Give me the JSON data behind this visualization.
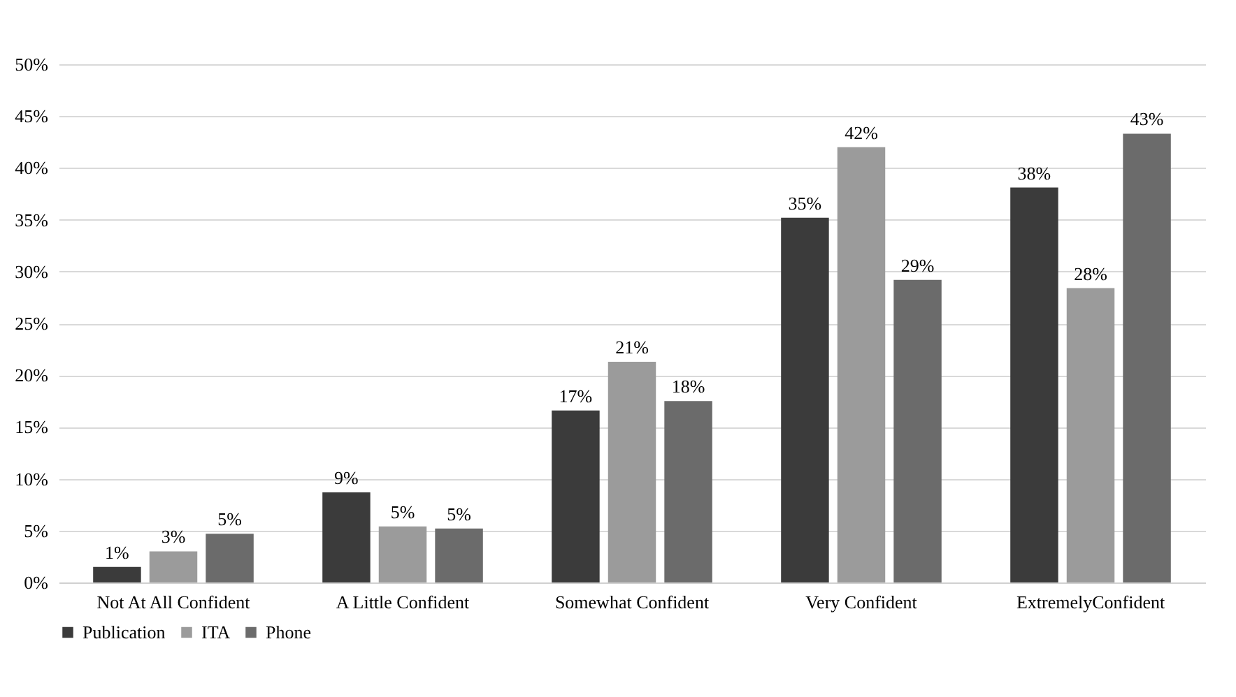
{
  "chart_data": {
    "type": "bar",
    "categories": [
      "Not At All Confident",
      "A Little Confident",
      "Somewhat Confident",
      "Very Confident",
      "ExtremelyConfident"
    ],
    "series": [
      {
        "name": "Publication",
        "color": "#3b3b3b",
        "values": [
          1.5,
          8.7,
          16.6,
          35.2,
          38.1
        ],
        "value_labels": [
          "1%",
          "9%",
          "17%",
          "35%",
          "38%"
        ]
      },
      {
        "name": "ITA",
        "color": "#9b9b9b",
        "values": [
          3.0,
          5.4,
          21.3,
          42.0,
          28.4
        ],
        "value_labels": [
          "3%",
          "5%",
          "21%",
          "42%",
          "28%"
        ]
      },
      {
        "name": "Phone",
        "color": "#6b6b6b",
        "values": [
          4.7,
          5.2,
          17.5,
          29.2,
          43.3
        ],
        "value_labels": [
          "5%",
          "5%",
          "18%",
          "29%",
          "43%"
        ]
      }
    ],
    "ylim": [
      0,
      50
    ],
    "yticks": [
      {
        "value": 0,
        "label": "0%"
      },
      {
        "value": 5,
        "label": "5%"
      },
      {
        "value": 10,
        "label": "10%"
      },
      {
        "value": 15,
        "label": "15%"
      },
      {
        "value": 20,
        "label": "20%"
      },
      {
        "value": 25,
        "label": "25%"
      },
      {
        "value": 30,
        "label": "30%"
      },
      {
        "value": 35,
        "label": "35%"
      },
      {
        "value": 40,
        "label": "40%"
      },
      {
        "value": 45,
        "label": "45%"
      },
      {
        "value": 50,
        "label": "50%"
      }
    ],
    "grid": "y",
    "legend": "bottom"
  }
}
